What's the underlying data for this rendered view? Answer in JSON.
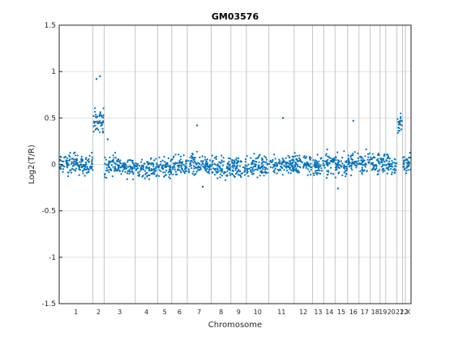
{
  "chart_data": {
    "type": "scatter",
    "title": "GM03576",
    "xlabel": "Chromosome",
    "ylabel": "Log2(T/R)",
    "ylim": [
      -1.5,
      1.5
    ],
    "yticks": [
      -1.5,
      -1,
      -0.5,
      0,
      0.5,
      1,
      1.5
    ],
    "ytick_labels": [
      "-1.5",
      "-1",
      "-0.5",
      "0",
      "0.5",
      "1",
      "1.5"
    ],
    "grid": true,
    "point_color": "#0072bd",
    "chromosomes": [
      {
        "label": "1",
        "start": 0,
        "end": 24,
        "mean": 0.0
      },
      {
        "label": "2",
        "start": 24,
        "end": 32,
        "mean": 0.48
      },
      {
        "label": "3",
        "start": 32,
        "end": 54,
        "mean": -0.02
      },
      {
        "label": "4",
        "start": 54,
        "end": 70,
        "mean": -0.04
      },
      {
        "label": "5",
        "start": 70,
        "end": 80,
        "mean": -0.04
      },
      {
        "label": "6",
        "start": 80,
        "end": 91,
        "mean": -0.03
      },
      {
        "label": "7",
        "start": 91,
        "end": 108,
        "mean": 0.0
      },
      {
        "label": "8",
        "start": 108,
        "end": 122,
        "mean": -0.04
      },
      {
        "label": "9",
        "start": 122,
        "end": 133,
        "mean": -0.03
      },
      {
        "label": "10",
        "start": 133,
        "end": 149,
        "mean": -0.01
      },
      {
        "label": "11",
        "start": 149,
        "end": 167,
        "mean": 0.0
      },
      {
        "label": "12",
        "start": 167,
        "end": 180,
        "mean": 0.0
      },
      {
        "label": "13",
        "start": 180,
        "end": 188,
        "mean": -0.01
      },
      {
        "label": "14",
        "start": 188,
        "end": 196,
        "mean": 0.0
      },
      {
        "label": "15",
        "start": 196,
        "end": 205,
        "mean": -0.01
      },
      {
        "label": "16",
        "start": 205,
        "end": 213,
        "mean": 0.02
      },
      {
        "label": "17",
        "start": 213,
        "end": 221,
        "mean": 0.03
      },
      {
        "label": "18",
        "start": 221,
        "end": 228,
        "mean": 0.02
      },
      {
        "label": "19",
        "start": 228,
        "end": 232,
        "mean": 0.02
      },
      {
        "label": "20",
        "start": 232,
        "end": 240,
        "mean": 0.0
      },
      {
        "label": "21",
        "start": 240,
        "end": 244,
        "mean": 0.43
      },
      {
        "label": "22",
        "start": 244,
        "end": 246,
        "mean": 0.0
      },
      {
        "label": "X",
        "start": 246,
        "end": 250,
        "mean": -0.01
      }
    ],
    "outliers": [
      {
        "x": 26.5,
        "y": 0.92
      },
      {
        "x": 29.0,
        "y": 0.95
      },
      {
        "x": 98.0,
        "y": 0.42
      },
      {
        "x": 159.0,
        "y": 0.5
      },
      {
        "x": 209.0,
        "y": 0.47
      },
      {
        "x": 34.5,
        "y": 0.27
      },
      {
        "x": 102.0,
        "y": -0.24
      },
      {
        "x": 198.0,
        "y": -0.26
      }
    ]
  }
}
